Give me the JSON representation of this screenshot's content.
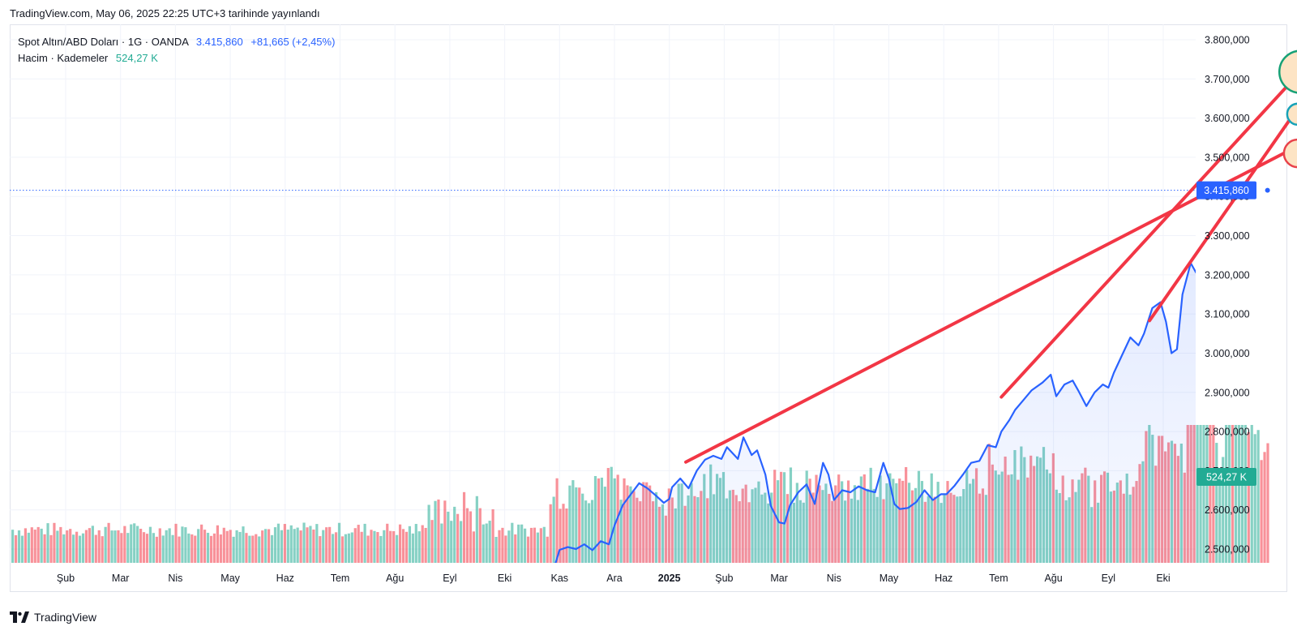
{
  "header": {
    "published": "TradingView.com, May 06, 2025 22:25 UTC+3 tarihinde yayınlandı"
  },
  "legend": {
    "symbol": "Spot Altın/ABD Doları · 1G · OANDA",
    "price": "3.415,860",
    "change": "+81,665 (+2,45%)",
    "volume_label": "Hacim · Kademeler",
    "volume_value": "524,27 K"
  },
  "footer": {
    "brand": "TradingView"
  },
  "colors": {
    "price_line": "#2962ff",
    "area_fill": "#2962ff",
    "volume_up": "#22ab94",
    "volume_down": "#f23645",
    "trendline": "#f23645",
    "volume_badge": "#22ab94",
    "price_badge": "#2962ff"
  },
  "chart_data": {
    "type": "line",
    "title": "Spot Altın/ABD Doları · 1G · OANDA",
    "y_axis": {
      "ticks": [
        "2.500,000",
        "2.600,000",
        "2.700,000",
        "2.800,000",
        "2.900,000",
        "3.000,000",
        "3.100,000",
        "3.200,000",
        "3.300,000",
        "3.400,000",
        "3.500,000",
        "3.600,000",
        "3.700,000",
        "3.800,000"
      ],
      "tick_values": [
        2500,
        2600,
        2700,
        2800,
        2900,
        3000,
        3100,
        3200,
        3300,
        3400,
        3500,
        3600,
        3700,
        3800
      ],
      "ylim": [
        2470,
        3840
      ]
    },
    "x_axis": {
      "labels": [
        {
          "text": "Şub",
          "bold": false
        },
        {
          "text": "Mar",
          "bold": false
        },
        {
          "text": "Nis",
          "bold": false
        },
        {
          "text": "May",
          "bold": false
        },
        {
          "text": "Haz",
          "bold": false
        },
        {
          "text": "Tem",
          "bold": false
        },
        {
          "text": "Ağu",
          "bold": false
        },
        {
          "text": "Eyl",
          "bold": false
        },
        {
          "text": "Eki",
          "bold": false
        },
        {
          "text": "Kas",
          "bold": false
        },
        {
          "text": "Ara",
          "bold": false
        },
        {
          "text": "2025",
          "bold": true
        },
        {
          "text": "Şub",
          "bold": false
        },
        {
          "text": "Mar",
          "bold": false
        },
        {
          "text": "Nis",
          "bold": false
        },
        {
          "text": "May",
          "bold": false
        },
        {
          "text": "Haz",
          "bold": false
        },
        {
          "text": "Tem",
          "bold": false
        },
        {
          "text": "Ağu",
          "bold": false
        },
        {
          "text": "Eyl",
          "bold": false
        },
        {
          "text": "Eki",
          "bold": false
        }
      ]
    },
    "price_series": {
      "name": "Spot Altın/ABD Doları",
      "points": [
        [
          8.2,
          2425
        ],
        [
          8.4,
          2436
        ],
        [
          8.55,
          2430
        ],
        [
          8.7,
          2445
        ],
        [
          8.85,
          2428
        ],
        [
          9.0,
          2498
        ],
        [
          9.15,
          2505
        ],
        [
          9.3,
          2500
        ],
        [
          9.45,
          2512
        ],
        [
          9.6,
          2497
        ],
        [
          9.75,
          2520
        ],
        [
          9.9,
          2512
        ],
        [
          10.0,
          2560
        ],
        [
          10.15,
          2612
        ],
        [
          10.3,
          2640
        ],
        [
          10.45,
          2668
        ],
        [
          10.6,
          2655
        ],
        [
          10.75,
          2637
        ],
        [
          10.9,
          2618
        ],
        [
          11.0,
          2628
        ],
        [
          11.05,
          2658
        ],
        [
          11.2,
          2680
        ],
        [
          11.35,
          2655
        ],
        [
          11.5,
          2700
        ],
        [
          11.65,
          2728
        ],
        [
          11.8,
          2738
        ],
        [
          11.95,
          2730
        ],
        [
          12.05,
          2760
        ],
        [
          12.25,
          2730
        ],
        [
          12.35,
          2785
        ],
        [
          12.5,
          2740
        ],
        [
          12.6,
          2752
        ],
        [
          12.75,
          2690
        ],
        [
          12.85,
          2610
        ],
        [
          13.0,
          2568
        ],
        [
          13.1,
          2565
        ],
        [
          13.2,
          2612
        ],
        [
          13.35,
          2645
        ],
        [
          13.5,
          2665
        ],
        [
          13.65,
          2615
        ],
        [
          13.8,
          2720
        ],
        [
          13.9,
          2690
        ],
        [
          14.0,
          2625
        ],
        [
          14.15,
          2650
        ],
        [
          14.3,
          2645
        ],
        [
          14.45,
          2660
        ],
        [
          14.6,
          2650
        ],
        [
          14.75,
          2645
        ],
        [
          14.9,
          2720
        ],
        [
          15.0,
          2680
        ],
        [
          15.1,
          2615
        ],
        [
          15.2,
          2602
        ],
        [
          15.35,
          2605
        ],
        [
          15.5,
          2620
        ],
        [
          15.65,
          2650
        ],
        [
          15.8,
          2625
        ],
        [
          15.95,
          2640
        ],
        [
          16.05,
          2640
        ],
        [
          16.2,
          2662
        ],
        [
          16.35,
          2690
        ],
        [
          16.5,
          2720
        ],
        [
          16.65,
          2725
        ],
        [
          16.8,
          2765
        ],
        [
          16.95,
          2760
        ],
        [
          17.05,
          2800
        ],
        [
          17.2,
          2830
        ],
        [
          17.3,
          2855
        ],
        [
          17.45,
          2880
        ],
        [
          17.6,
          2905
        ],
        [
          17.8,
          2925
        ],
        [
          17.95,
          2945
        ],
        [
          18.05,
          2890
        ],
        [
          18.2,
          2920
        ],
        [
          18.35,
          2930
        ],
        [
          18.45,
          2905
        ],
        [
          18.6,
          2865
        ],
        [
          18.75,
          2900
        ],
        [
          18.9,
          2920
        ],
        [
          19.0,
          2912
        ],
        [
          19.1,
          2950
        ],
        [
          19.25,
          2995
        ],
        [
          19.4,
          3040
        ],
        [
          19.55,
          3020
        ],
        [
          19.65,
          3050
        ],
        [
          19.8,
          3115
        ],
        [
          19.95,
          3130
        ],
        [
          20.05,
          3080
        ],
        [
          20.15,
          3000
        ],
        [
          20.25,
          3010
        ],
        [
          20.35,
          3150
        ],
        [
          20.5,
          3230
        ],
        [
          20.6,
          3205
        ],
        [
          20.7,
          3300
        ],
        [
          20.8,
          3350
        ],
        [
          20.9,
          3410
        ],
        [
          21.0,
          3330
        ],
        [
          21.1,
          3300
        ],
        [
          21.2,
          3350
        ],
        [
          21.3,
          3320
        ],
        [
          21.4,
          3345
        ],
        [
          21.5,
          3300
        ],
        [
          21.6,
          3245
        ],
        [
          21.7,
          3250
        ],
        [
          21.8,
          3330
        ],
        [
          21.9,
          3415.86
        ]
      ]
    },
    "volume_series": {
      "name": "Hacim",
      "last": "524,27 K"
    },
    "trendlines": [
      {
        "from": [
          11.3,
          2722
        ],
        "to": [
          23.3,
          3590
        ],
        "color": "#f23645"
      },
      {
        "from": [
          17.05,
          2888
        ],
        "to": [
          22.3,
          3688
        ],
        "color": "#f23645"
      },
      {
        "from": [
          19.75,
          3083
        ],
        "to": [
          22.6,
          3655
        ],
        "color": "#f23645"
      }
    ],
    "markers": [
      {
        "at": [
          22.5,
          3718
        ],
        "fill": "#fde4c4",
        "stroke": "#17a176",
        "size": "large"
      },
      {
        "at": [
          22.45,
          3610
        ],
        "fill": "#fde4c4",
        "stroke": "#17a2b8",
        "size": "small"
      },
      {
        "at": [
          22.45,
          3510
        ],
        "fill": "#fde4c4",
        "stroke": "#e8424a",
        "size": "medium"
      }
    ],
    "current_price": {
      "value": 3415.86,
      "label": "3.415,860"
    },
    "volume_badge_label": "524,27 K"
  }
}
